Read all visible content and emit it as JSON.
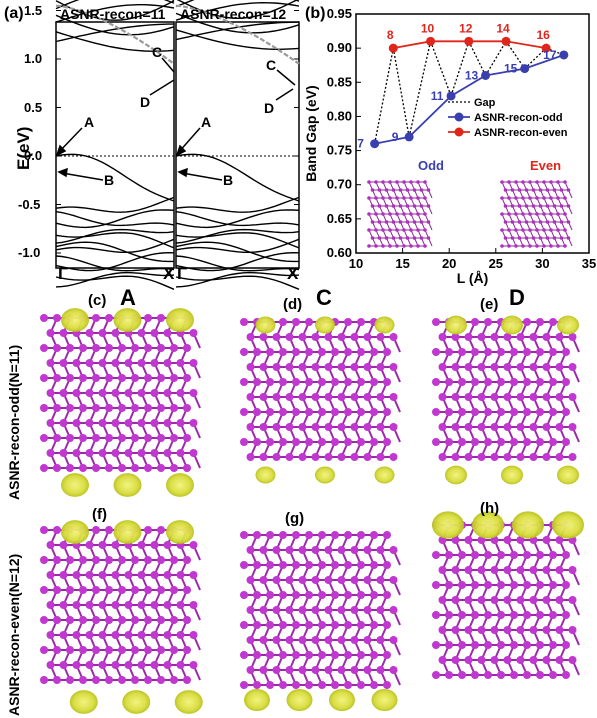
{
  "panel_a": {
    "panel_label": "(a)",
    "title_left": "ASNR-recon=11",
    "title_right": "ASNR-recon=12",
    "ylabel": "E(eV)",
    "yticks": [
      "1.5",
      "1.0",
      "0.5",
      "0.0",
      "-0.5",
      "-1.0"
    ],
    "kpoints": [
      "Γ",
      "X",
      "Γ",
      "X"
    ],
    "state_labels": [
      "A",
      "B",
      "C",
      "D"
    ]
  },
  "panel_b": {
    "panel_label": "(b)",
    "odd_label": "Odd",
    "even_label": "Even",
    "odd_color": "#3a3fb0",
    "even_color": "#e0251b"
  },
  "row_labels": {
    "odd": "ASNR-recon-odd(N=11)",
    "even": "ASNR-recon-even(N=12)"
  },
  "density_panels": {
    "col_titles": [
      "A",
      "C",
      "D"
    ],
    "labels": [
      "(c)",
      "(d)",
      "(e)",
      "(f)",
      "(g)",
      "(h)"
    ]
  },
  "chart_data": {
    "type": "line",
    "xlabel": "L (Å)",
    "ylabel": "Band Gap (eV)",
    "xlim": [
      10,
      35
    ],
    "ylim": [
      0.6,
      0.95
    ],
    "xticks": [
      10,
      15,
      20,
      25,
      30,
      35
    ],
    "yticks": [
      0.6,
      0.65,
      0.7,
      0.75,
      0.8,
      0.85,
      0.9,
      0.95
    ],
    "legend": [
      "Gap",
      "ASNR-recon-odd",
      "ASNR-recon-even"
    ],
    "legend_position": "center-right",
    "series": [
      {
        "name": "ASNR-recon-odd",
        "color": "#3a3fb0",
        "x": [
          12.0,
          15.7,
          20.2,
          23.9,
          28.1,
          32.3
        ],
        "y": [
          0.76,
          0.77,
          0.83,
          0.86,
          0.87,
          0.89
        ],
        "labels": [
          "7",
          "9",
          "11",
          "13",
          "15",
          "17"
        ]
      },
      {
        "name": "ASNR-recon-even",
        "color": "#e0251b",
        "x": [
          14.0,
          18.0,
          22.1,
          26.1,
          30.4
        ],
        "y": [
          0.9,
          0.91,
          0.91,
          0.91,
          0.9
        ],
        "labels": [
          "8",
          "10",
          "12",
          "14",
          "16"
        ]
      }
    ]
  }
}
